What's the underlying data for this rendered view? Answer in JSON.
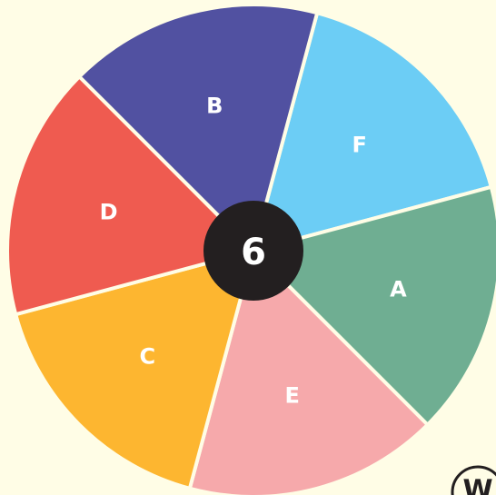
{
  "wheel": {
    "center_label": "6",
    "segments": [
      {
        "label": "F",
        "color": "#6ccdf5"
      },
      {
        "label": "A",
        "color": "#6fae92"
      },
      {
        "label": "E",
        "color": "#f6a9ab"
      },
      {
        "label": "C",
        "color": "#fdb630"
      },
      {
        "label": "D",
        "color": "#ef5b50"
      },
      {
        "label": "B",
        "color": "#5151a1"
      }
    ]
  },
  "logo": "W"
}
